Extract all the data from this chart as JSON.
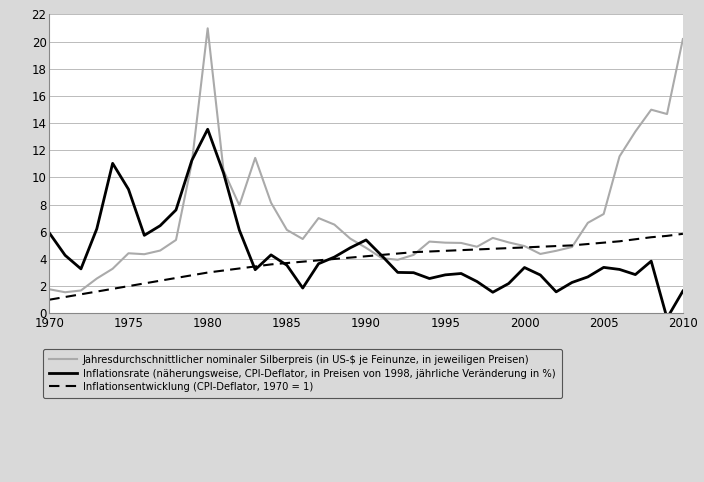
{
  "years": [
    1970,
    1971,
    1972,
    1973,
    1974,
    1975,
    1976,
    1977,
    1978,
    1979,
    1980,
    1981,
    1982,
    1983,
    1984,
    1985,
    1986,
    1987,
    1988,
    1989,
    1990,
    1991,
    1992,
    1993,
    1994,
    1995,
    1996,
    1997,
    1998,
    1999,
    2000,
    2001,
    2002,
    2003,
    2004,
    2005,
    2006,
    2007,
    2008,
    2009,
    2010
  ],
  "silver_price": [
    1.77,
    1.55,
    1.68,
    2.56,
    3.28,
    4.42,
    4.35,
    4.62,
    5.4,
    11.09,
    20.98,
    10.52,
    7.95,
    11.44,
    8.14,
    6.14,
    5.47,
    7.01,
    6.53,
    5.5,
    4.82,
    4.06,
    3.94,
    4.3,
    5.28,
    5.2,
    5.18,
    4.9,
    5.55,
    5.22,
    4.95,
    4.37,
    4.6,
    4.88,
    6.66,
    7.31,
    11.55,
    13.38,
    14.99,
    14.67,
    20.19
  ],
  "inflation_rate": [
    5.92,
    4.27,
    3.27,
    6.22,
    11.04,
    9.13,
    5.74,
    6.45,
    7.61,
    11.26,
    13.55,
    10.33,
    6.12,
    3.21,
    4.3,
    3.54,
    1.86,
    3.65,
    4.14,
    4.82,
    5.4,
    4.23,
    3.01,
    2.99,
    2.56,
    2.83,
    2.93,
    2.34,
    1.55,
    2.19,
    3.37,
    2.82,
    1.58,
    2.27,
    2.68,
    3.38,
    3.23,
    2.85,
    3.84,
    -0.36,
    1.64
  ],
  "inflation_trend": [
    1.0,
    1.2,
    1.4,
    1.6,
    1.8,
    2.0,
    2.2,
    2.4,
    2.6,
    2.8,
    3.0,
    3.15,
    3.3,
    3.45,
    3.6,
    3.7,
    3.8,
    3.9,
    4.0,
    4.1,
    4.2,
    4.3,
    4.4,
    4.5,
    4.55,
    4.6,
    4.65,
    4.7,
    4.75,
    4.8,
    4.85,
    4.9,
    4.95,
    5.0,
    5.1,
    5.2,
    5.3,
    5.45,
    5.6,
    5.7,
    5.85
  ],
  "silver_color": "#aaaaaa",
  "inflation_rate_color": "#000000",
  "inflation_trend_color": "#000000",
  "ylim": [
    0,
    22
  ],
  "yticks": [
    0,
    2,
    4,
    6,
    8,
    10,
    12,
    14,
    16,
    18,
    20,
    22
  ],
  "xlim": [
    1970,
    2010
  ],
  "xticks": [
    1970,
    1975,
    1980,
    1985,
    1990,
    1995,
    2000,
    2005,
    2010
  ],
  "legend_silver": "Jahresdurchschnittlicher nominaler Silberpreis (in US-$ je Feinunze, in jeweiligen Preisen)",
  "legend_inflation_rate": "Inflationsrate (näherungsweise, CPI-Deflator, in Preisen von 1998, jährliche Veränderung in %)",
  "legend_inflation_trend": "Inflationsentwicklung (CPI-Deflator, 1970 = 1)",
  "background_color": "#d9d9d9",
  "plot_background_color": "#ffffff",
  "grid_color": "#bbbbbb"
}
